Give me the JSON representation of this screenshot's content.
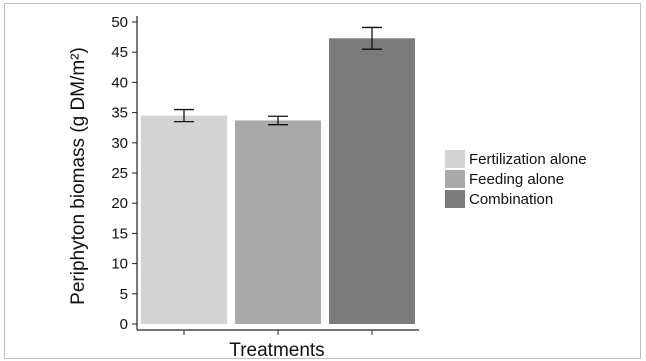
{
  "chart_data": {
    "type": "bar",
    "categories": [
      "Fertilization alone",
      "Feeding alone",
      "Combination"
    ],
    "values": [
      34.5,
      33.7,
      47.3
    ],
    "errors": [
      1.0,
      0.7,
      1.8
    ],
    "colors": [
      "#d3d3d3",
      "#a9a9a9",
      "#7b7b7b"
    ],
    "xlabel": "Treatments",
    "ylabel": "Periphyton biomass (g DM/m²)",
    "ylim": [
      0,
      50
    ],
    "yticks": [
      0,
      5,
      10,
      15,
      20,
      25,
      30,
      35,
      40,
      45,
      50
    ],
    "grid": false,
    "legend": {
      "position": "right",
      "entries": [
        "Fertilization alone",
        "Feeding alone",
        "Combination"
      ]
    }
  }
}
